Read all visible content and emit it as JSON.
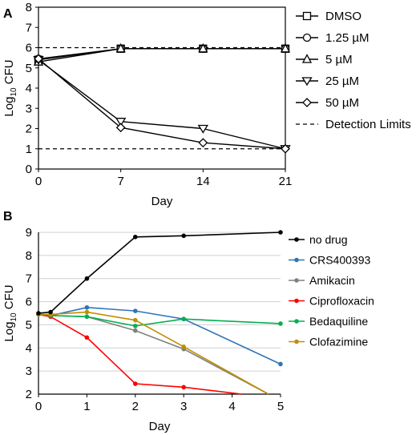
{
  "chart_data": [
    {
      "panel_label": "A",
      "type": "line",
      "xlabel": "Day",
      "ylabel": "Log10 CFU",
      "ylabel_main": "Log",
      "ylabel_sub": "10",
      "ylabel_rest": " CFU",
      "xlim": [
        0,
        21
      ],
      "ylim": [
        0,
        8
      ],
      "xticks": [
        0,
        7,
        14,
        21
      ],
      "yticks": [
        0,
        1,
        2,
        3,
        4,
        5,
        6,
        7,
        8
      ],
      "grid": false,
      "legend_position": "right",
      "series": [
        {
          "name": "DMSO",
          "marker": "square",
          "x": [
            0,
            7,
            14,
            21
          ],
          "y": [
            5.4,
            5.95,
            5.95,
            5.95
          ]
        },
        {
          "name": "1.25 µM",
          "marker": "circle",
          "x": [
            0,
            7,
            14,
            21
          ],
          "y": [
            5.45,
            5.95,
            5.95,
            5.95
          ]
        },
        {
          "name": "5 µM",
          "marker": "triangle-up",
          "x": [
            0,
            7,
            14,
            21
          ],
          "y": [
            5.3,
            5.95,
            5.95,
            5.95
          ]
        },
        {
          "name": "25 µM",
          "marker": "triangle-down",
          "x": [
            0,
            7,
            14,
            21
          ],
          "y": [
            5.4,
            2.35,
            2.0,
            1.0
          ]
        },
        {
          "name": "50 µM",
          "marker": "diamond",
          "x": [
            0,
            7,
            14,
            21
          ],
          "y": [
            5.45,
            2.05,
            1.3,
            1.0
          ]
        }
      ],
      "reference_lines": [
        {
          "name": "Detection Limits",
          "style": "dashed",
          "y": [
            6,
            1
          ]
        }
      ]
    },
    {
      "panel_label": "B",
      "type": "line",
      "xlabel": "Day",
      "ylabel": "Log10 CFU",
      "ylabel_main": "Log",
      "ylabel_sub": "10",
      "ylabel_rest": " CFU",
      "xlim": [
        0,
        5
      ],
      "ylim": [
        2,
        9
      ],
      "xticks": [
        0,
        1,
        2,
        3,
        4,
        5
      ],
      "yticks": [
        2,
        3,
        4,
        5,
        6,
        7,
        8,
        9
      ],
      "grid": "horizontal",
      "legend_position": "right",
      "series": [
        {
          "name": "no drug",
          "color": "#000000",
          "x": [
            0,
            0.25,
            1,
            2,
            3,
            5
          ],
          "y": [
            5.5,
            5.55,
            7.0,
            8.8,
            8.85,
            9.0
          ]
        },
        {
          "name": "CRS400393",
          "color": "#2e75b6",
          "x": [
            0,
            0.25,
            1,
            2,
            3,
            5
          ],
          "y": [
            5.45,
            5.4,
            5.75,
            5.6,
            5.25,
            3.3
          ]
        },
        {
          "name": "Amikacin",
          "color": "#808080",
          "x": [
            0,
            0.25,
            1,
            2,
            3,
            4.75
          ],
          "y": [
            5.45,
            5.4,
            5.35,
            4.75,
            3.95,
            2.0
          ]
        },
        {
          "name": "Ciprofloxacin",
          "color": "#ff0000",
          "x": [
            0,
            0.25,
            1,
            2,
            3,
            4.2
          ],
          "y": [
            5.45,
            5.35,
            4.45,
            2.45,
            2.3,
            2.0
          ]
        },
        {
          "name": "Bedaquiline",
          "color": "#00b050",
          "x": [
            0,
            0.25,
            1,
            2,
            3,
            5
          ],
          "y": [
            5.45,
            5.4,
            5.35,
            4.95,
            5.25,
            5.05
          ]
        },
        {
          "name": "Clofazimine",
          "color": "#bf9000",
          "x": [
            0,
            0.25,
            1,
            2,
            3,
            4.75
          ],
          "y": [
            5.45,
            5.45,
            5.55,
            5.2,
            4.05,
            2.0
          ]
        }
      ]
    }
  ]
}
